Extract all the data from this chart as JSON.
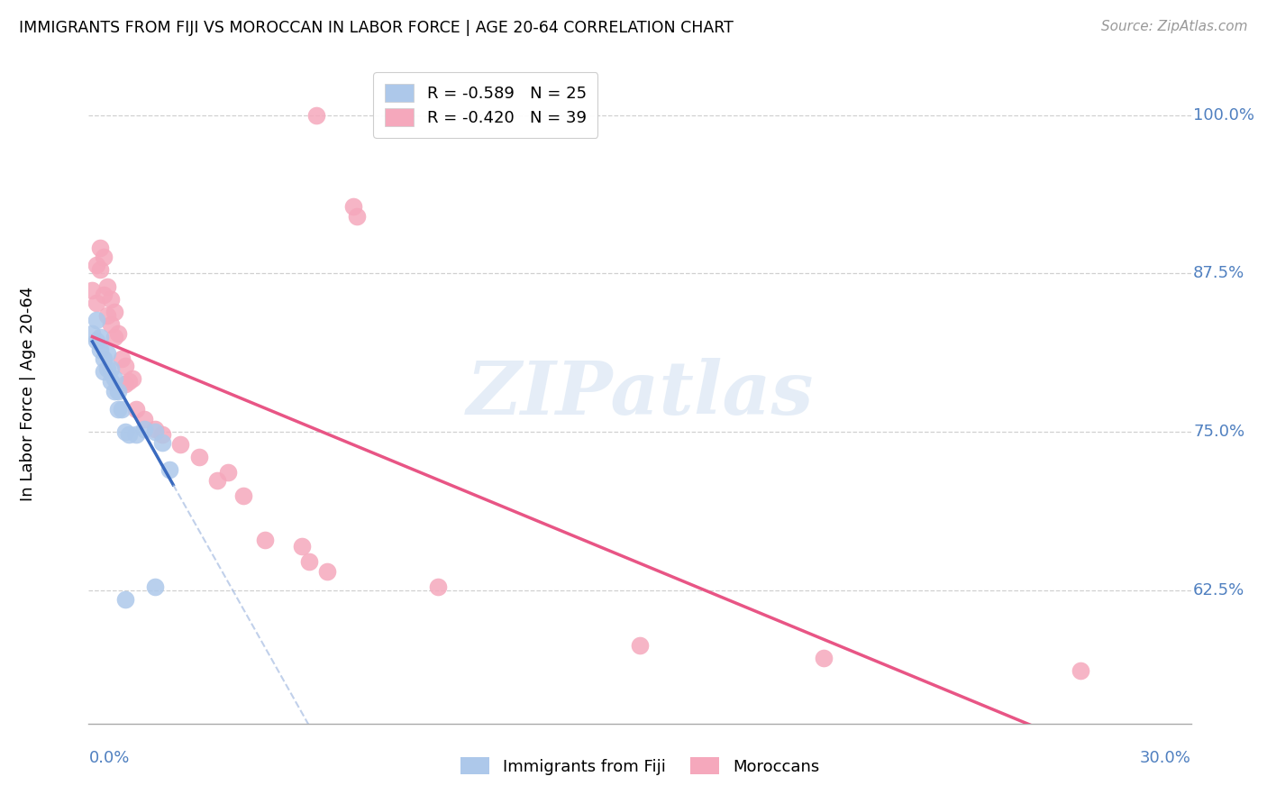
{
  "title": "IMMIGRANTS FROM FIJI VS MOROCCAN IN LABOR FORCE | AGE 20-64 CORRELATION CHART",
  "source": "Source: ZipAtlas.com",
  "ylabel": "In Labor Force | Age 20-64",
  "xlim": [
    0.0,
    0.3
  ],
  "ylim": [
    0.52,
    1.04
  ],
  "watermark_text": "ZIPatlas",
  "fiji_R": "-0.589",
  "fiji_N": "25",
  "moroccan_R": "-0.420",
  "moroccan_N": "39",
  "fiji_color": "#adc8ea",
  "moroccan_color": "#f5a8bc",
  "fiji_line_color": "#3a6abf",
  "moroccan_line_color": "#e85585",
  "fiji_dash_color": "#a0b8e0",
  "grid_color": "#d0d0d0",
  "tick_color": "#5080c0",
  "ytick_vals": [
    0.625,
    0.75,
    0.875,
    1.0
  ],
  "ytick_labels": [
    "62.5%",
    "75.0%",
    "87.5%",
    "100.0%"
  ],
  "fiji_x": [
    0.001,
    0.002,
    0.002,
    0.003,
    0.003,
    0.004,
    0.004,
    0.005,
    0.005,
    0.006,
    0.006,
    0.007,
    0.007,
    0.008,
    0.008,
    0.009,
    0.01,
    0.011,
    0.013,
    0.015,
    0.018,
    0.02,
    0.022,
    0.018,
    0.01
  ],
  "fiji_y": [
    0.828,
    0.838,
    0.822,
    0.825,
    0.815,
    0.808,
    0.798,
    0.812,
    0.8,
    0.8,
    0.79,
    0.792,
    0.782,
    0.782,
    0.768,
    0.768,
    0.75,
    0.748,
    0.748,
    0.752,
    0.75,
    0.742,
    0.72,
    0.628,
    0.618
  ],
  "moroccan_x": [
    0.001,
    0.002,
    0.002,
    0.003,
    0.003,
    0.004,
    0.004,
    0.005,
    0.005,
    0.006,
    0.006,
    0.007,
    0.007,
    0.008,
    0.072,
    0.073,
    0.009,
    0.01,
    0.01,
    0.011,
    0.012,
    0.013,
    0.015,
    0.018,
    0.02,
    0.025,
    0.03,
    0.038,
    0.048,
    0.058,
    0.06,
    0.065,
    0.095,
    0.035,
    0.042,
    0.15,
    0.2,
    0.27,
    0.062
  ],
  "moroccan_y": [
    0.862,
    0.852,
    0.882,
    0.895,
    0.878,
    0.888,
    0.858,
    0.865,
    0.842,
    0.855,
    0.835,
    0.845,
    0.825,
    0.828,
    0.928,
    0.92,
    0.808,
    0.802,
    0.788,
    0.79,
    0.792,
    0.768,
    0.76,
    0.752,
    0.748,
    0.74,
    0.73,
    0.718,
    0.665,
    0.66,
    0.648,
    0.64,
    0.628,
    0.712,
    0.7,
    0.582,
    0.572,
    0.562,
    1.0
  ]
}
